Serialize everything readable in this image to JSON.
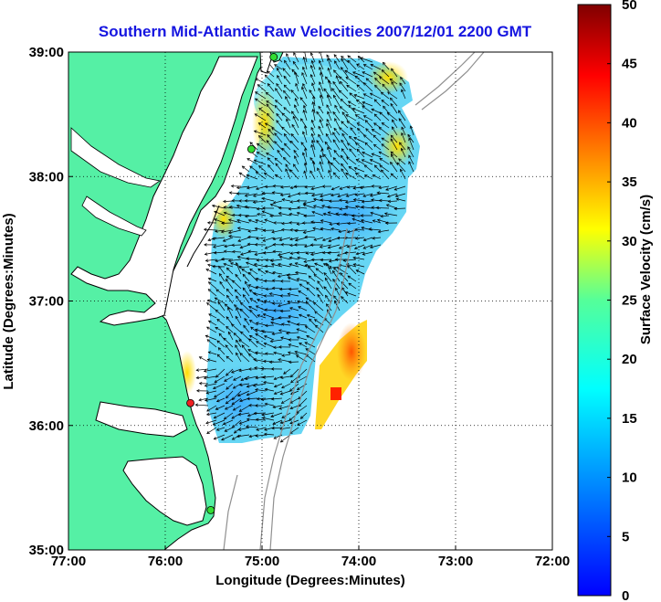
{
  "title": "Southern Mid-Atlantic Raw Velocities 2007/12/01 2200 GMT",
  "map": {
    "xlabel": "Longitude (Degrees:Minutes)",
    "ylabel": "Latitude (Degrees:Minutes)",
    "lon_range": [
      -77,
      -72
    ],
    "lat_range": [
      35,
      39
    ],
    "x_ticks": [
      {
        "value": -77,
        "label": "77:00"
      },
      {
        "value": -76,
        "label": "76:00"
      },
      {
        "value": -75,
        "label": "75:00"
      },
      {
        "value": -74,
        "label": "74:00"
      },
      {
        "value": -73,
        "label": "73:00"
      },
      {
        "value": -72,
        "label": "72:00"
      }
    ],
    "y_ticks": [
      {
        "value": 39,
        "label": "39:00"
      },
      {
        "value": 38,
        "label": "38:00"
      },
      {
        "value": 37,
        "label": "37:00"
      },
      {
        "value": 36,
        "label": "36:00"
      },
      {
        "value": 35,
        "label": "35:00"
      }
    ],
    "grid": "dotted",
    "land_color": "#55f0a5",
    "coast_color": "#000000",
    "bathymetry_color": "#909090",
    "stations": [
      {
        "lon": -74.88,
        "lat": 38.96,
        "color": "#33dd33"
      },
      {
        "lon": -75.11,
        "lat": 38.22,
        "color": "#33dd33"
      },
      {
        "lon": -75.74,
        "lat": 36.18,
        "color": "#ee2222"
      },
      {
        "lon": -75.53,
        "lat": 35.32,
        "color": "#33dd33"
      }
    ]
  },
  "colorbar": {
    "label": "Surface Velocity (cm/s)",
    "min": 0,
    "max": 50,
    "tick_labels": [
      "0",
      "5",
      "10",
      "15",
      "20",
      "25",
      "30",
      "35",
      "40",
      "45",
      "50"
    ],
    "colormap": "jet"
  }
}
